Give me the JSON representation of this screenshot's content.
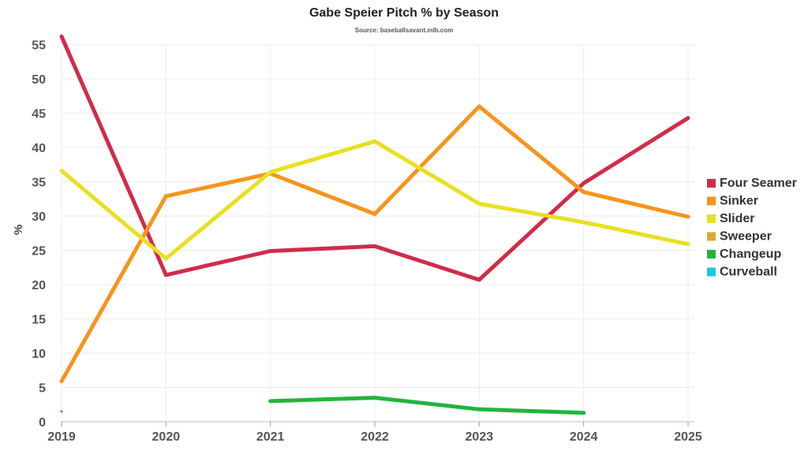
{
  "chart": {
    "title": "Gabe Speier Pitch % by Season",
    "subtitle": "Source: baseballsavant.mlb.com"
  },
  "chart_data": {
    "type": "line",
    "title": "Gabe Speier Pitch % by Season",
    "subtitle": "Source: baseballsavant.mlb.com",
    "xlabel": "",
    "ylabel": "%",
    "x": [
      "2019",
      "2020",
      "2021",
      "2022",
      "2023",
      "2024",
      "2025"
    ],
    "yticks": [
      0,
      5,
      10,
      15,
      20,
      25,
      30,
      35,
      40,
      45,
      50,
      55
    ],
    "ylim": [
      0,
      56
    ],
    "grid": true,
    "legend_position": "right",
    "series": [
      {
        "name": "Four Seamer",
        "color": "#d22b4a",
        "values": [
          56.2,
          21.4,
          24.9,
          25.6,
          20.7,
          34.8,
          44.3
        ]
      },
      {
        "name": "Sinker",
        "color": "#f7941d",
        "values": [
          5.9,
          32.9,
          36.2,
          30.3,
          46.0,
          33.5,
          29.9
        ]
      },
      {
        "name": "Slider",
        "color": "#e8e020",
        "values": [
          36.6,
          23.8,
          36.4,
          40.9,
          31.8,
          29.1,
          25.9
        ]
      },
      {
        "name": "Sweeper",
        "color": "#d9a73a",
        "values": [
          null,
          null,
          null,
          null,
          null,
          null,
          null
        ]
      },
      {
        "name": "Changeup",
        "color": "#22b53c",
        "values": [
          1.5,
          null,
          3.0,
          3.5,
          1.8,
          1.3,
          null
        ]
      },
      {
        "name": "Curveball",
        "color": "#19c8e6",
        "values": [
          null,
          null,
          null,
          null,
          null,
          null,
          null
        ]
      }
    ]
  }
}
